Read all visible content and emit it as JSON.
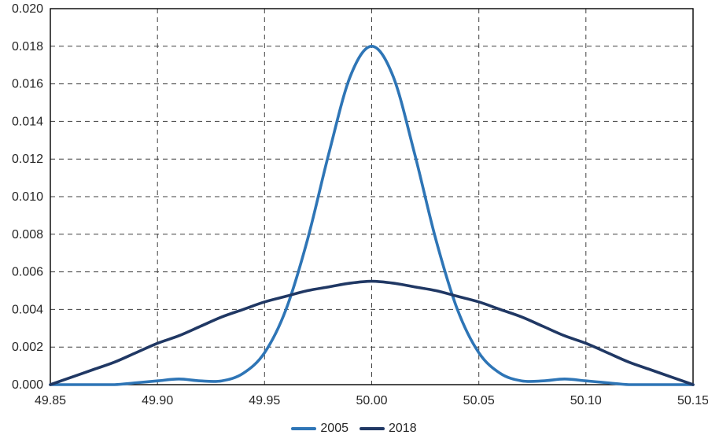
{
  "chart_data": {
    "type": "line",
    "title": "",
    "xlabel": "",
    "ylabel": "",
    "xlim": [
      49.85,
      50.15
    ],
    "ylim": [
      0,
      0.02
    ],
    "grid": "dashed-both-directions",
    "legend_position": "bottom-center",
    "x_ticks": [
      "49.85",
      "49.90",
      "49.95",
      "50.00",
      "50.05",
      "50.10",
      "50.15"
    ],
    "y_ticks": [
      "0.000",
      "0.002",
      "0.004",
      "0.006",
      "0.008",
      "0.010",
      "0.012",
      "0.014",
      "0.016",
      "0.018",
      "0.020"
    ],
    "x": [
      49.85,
      49.86,
      49.87,
      49.88,
      49.89,
      49.9,
      49.91,
      49.92,
      49.93,
      49.94,
      49.95,
      49.96,
      49.97,
      49.98,
      49.99,
      50.0,
      50.01,
      50.02,
      50.03,
      50.04,
      50.05,
      50.06,
      50.07,
      50.08,
      50.09,
      50.1,
      50.11,
      50.12,
      50.13,
      50.14,
      50.15
    ],
    "series": [
      {
        "name": "2005",
        "color": "#2E75B6",
        "values": [
          0.0,
          0.0,
          0.0,
          0.0,
          0.0001,
          0.0002,
          0.0003,
          0.0002,
          0.0002,
          0.0006,
          0.0017,
          0.004,
          0.0077,
          0.0123,
          0.0164,
          0.018,
          0.0164,
          0.0123,
          0.0077,
          0.004,
          0.0017,
          0.0006,
          0.0002,
          0.0002,
          0.0003,
          0.0002,
          0.0001,
          0.0,
          0.0,
          0.0,
          0.0
        ]
      },
      {
        "name": "2018",
        "color": "#203864",
        "values": [
          0.0,
          0.0004,
          0.0008,
          0.0012,
          0.0017,
          0.0022,
          0.0026,
          0.0031,
          0.0036,
          0.004,
          0.0044,
          0.0047,
          0.005,
          0.0052,
          0.0054,
          0.0055,
          0.0054,
          0.0052,
          0.005,
          0.0047,
          0.0044,
          0.004,
          0.0036,
          0.0031,
          0.0026,
          0.0022,
          0.0017,
          0.0012,
          0.0008,
          0.0004,
          0.0
        ]
      }
    ]
  },
  "styles": {
    "background": "#ffffff",
    "grid_color": "#3f3f3f",
    "axis_color": "#000000",
    "tick_label_color": "#262626",
    "line_width": 3.6
  }
}
